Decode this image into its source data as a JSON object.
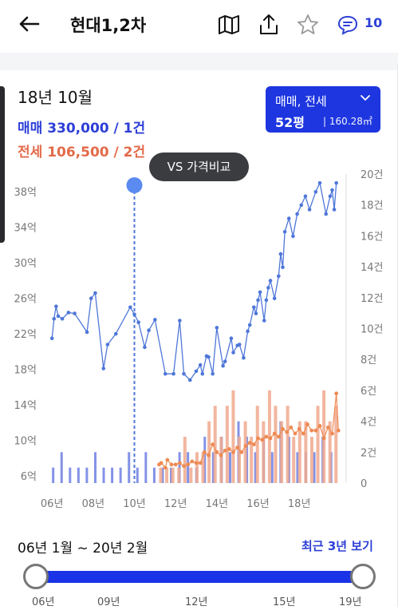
{
  "header": {
    "title": "현대1,2차",
    "comment_count": "10"
  },
  "summary": {
    "date": "18년 10월",
    "sale": "매매 330,000 / 1건",
    "rent": "전세 106,500 / 2건"
  },
  "type_selector": {
    "label": "매매, 전세",
    "size_pyeong": "52평",
    "size_m2": "160.28㎡"
  },
  "compare_button": "VS 가격비교",
  "colors": {
    "accent": "#1e36e0",
    "sale": "#4f77d9",
    "rent": "#ee8a53",
    "sale_bar": "#6d7fe3",
    "rent_bar": "#f0a98e"
  },
  "chart_data": {
    "type": "line",
    "x_ticks": [
      "06년",
      "08년",
      "10년",
      "12년",
      "14년",
      "16년",
      "18년"
    ],
    "y_left_ticks": [
      "38억",
      "34억",
      "30억",
      "26억",
      "22억",
      "18억",
      "14억",
      "10억",
      "6억"
    ],
    "y_left_values": [
      38,
      34,
      30,
      26,
      22,
      18,
      14,
      10,
      6
    ],
    "y_right_ticks": [
      "20건",
      "18건",
      "16건",
      "14건",
      "12건",
      "10건",
      "8건",
      "6건",
      "4건",
      "2건",
      "0"
    ],
    "x_range": [
      2005.8,
      2020.2
    ],
    "y_left_range": [
      5.2,
      40.0
    ],
    "y_right_range": [
      0,
      20
    ],
    "marker_date": 2010.0,
    "series": [
      {
        "name": "매매",
        "x": [
          2006.0,
          2006.1,
          2006.2,
          2006.3,
          2006.5,
          2006.8,
          2007.1,
          2007.7,
          2007.9,
          2008.1,
          2008.5,
          2008.7,
          2009.1,
          2009.8,
          2010.0,
          2010.2,
          2010.5,
          2010.7,
          2011.0,
          2011.5,
          2011.9,
          2012.2,
          2012.4,
          2012.7,
          2013.0,
          2013.2,
          2013.3,
          2013.5,
          2013.6,
          2013.8,
          2014.0,
          2014.3,
          2014.4,
          2014.7,
          2014.8,
          2015.0,
          2015.1,
          2015.3,
          2015.5,
          2015.6,
          2015.8,
          2015.9,
          2016.0,
          2016.1,
          2016.3,
          2016.4,
          2016.5,
          2016.6,
          2016.8,
          2017.0,
          2017.1,
          2017.2,
          2017.3,
          2017.5,
          2017.7,
          2017.9,
          2018.1,
          2018.3,
          2018.5,
          2018.8,
          2019.0,
          2019.3,
          2019.5,
          2019.6,
          2019.7,
          2019.8
        ],
        "y": [
          21.5,
          23.7,
          25.1,
          24.0,
          23.7,
          24.4,
          24.3,
          22.2,
          26.0,
          26.6,
          18.1,
          20.8,
          22.0,
          25.0,
          24.2,
          23.3,
          20.5,
          22.4,
          23.6,
          17.5,
          17.5,
          23.5,
          17.5,
          16.8,
          17.8,
          18.5,
          17.5,
          19.5,
          19.4,
          17.5,
          22.7,
          18.4,
          18.9,
          21.5,
          19.9,
          20.7,
          20.8,
          19.3,
          22.3,
          23.0,
          25.0,
          24.3,
          25.8,
          26.7,
          23.5,
          25.8,
          27.2,
          28.0,
          26.0,
          28.5,
          31.0,
          29.5,
          33.5,
          35.0,
          33.0,
          35.5,
          36.5,
          37.5,
          36.0,
          38.0,
          39.0,
          35.5,
          37.5,
          38.2,
          36.0,
          39.0
        ]
      },
      {
        "name": "전세",
        "x": [
          2011.2,
          2011.3,
          2011.5,
          2011.6,
          2011.8,
          2012.0,
          2012.2,
          2012.4,
          2012.6,
          2012.8,
          2013.0,
          2013.2,
          2013.4,
          2013.6,
          2013.8,
          2014.0,
          2014.2,
          2014.4,
          2014.6,
          2014.8,
          2015.0,
          2015.2,
          2015.4,
          2015.6,
          2015.8,
          2016.0,
          2016.2,
          2016.4,
          2016.6,
          2016.8,
          2017.0,
          2017.2,
          2017.4,
          2017.6,
          2017.8,
          2018.0,
          2018.2,
          2018.4,
          2018.6,
          2018.8,
          2019.0,
          2019.2,
          2019.4,
          2019.6,
          2019.8,
          2019.9
        ],
        "y": [
          1.2,
          1.3,
          1.0,
          1.5,
          1.2,
          1.2,
          1.3,
          1.1,
          1.2,
          1.4,
          1.3,
          1.3,
          2.0,
          1.8,
          2.5,
          2.0,
          1.8,
          2.1,
          2.2,
          2.0,
          2.3,
          2.0,
          2.4,
          2.6,
          2.5,
          2.9,
          2.8,
          3.0,
          2.9,
          3.2,
          3.0,
          3.5,
          3.3,
          3.6,
          3.2,
          3.5,
          3.2,
          3.8,
          3.4,
          3.4,
          3.7,
          2.9,
          3.6,
          3.2,
          5.8,
          3.4
        ]
      }
    ],
    "volume_bars": {
      "sale": [
        1,
        2,
        1,
        1,
        1,
        2,
        1,
        1,
        1,
        2,
        1,
        2,
        1,
        1,
        1,
        2,
        2,
        1,
        3,
        2,
        3,
        2,
        4,
        3,
        2,
        3,
        2,
        4,
        3,
        2,
        2,
        2,
        3,
        2
      ],
      "rent": [
        1,
        1,
        1,
        1,
        3,
        1,
        2,
        2,
        4,
        5,
        3,
        5,
        6,
        3,
        4,
        3,
        5,
        4,
        6,
        5,
        4,
        5,
        3,
        4,
        4,
        3,
        5,
        6,
        4,
        5
      ]
    }
  },
  "range": {
    "label": "06년 1월 ~ 20년 2월",
    "recent_link": "최근 3년 보기",
    "ticks": [
      "06년",
      "09년",
      "12년",
      "15년",
      "19년"
    ]
  }
}
